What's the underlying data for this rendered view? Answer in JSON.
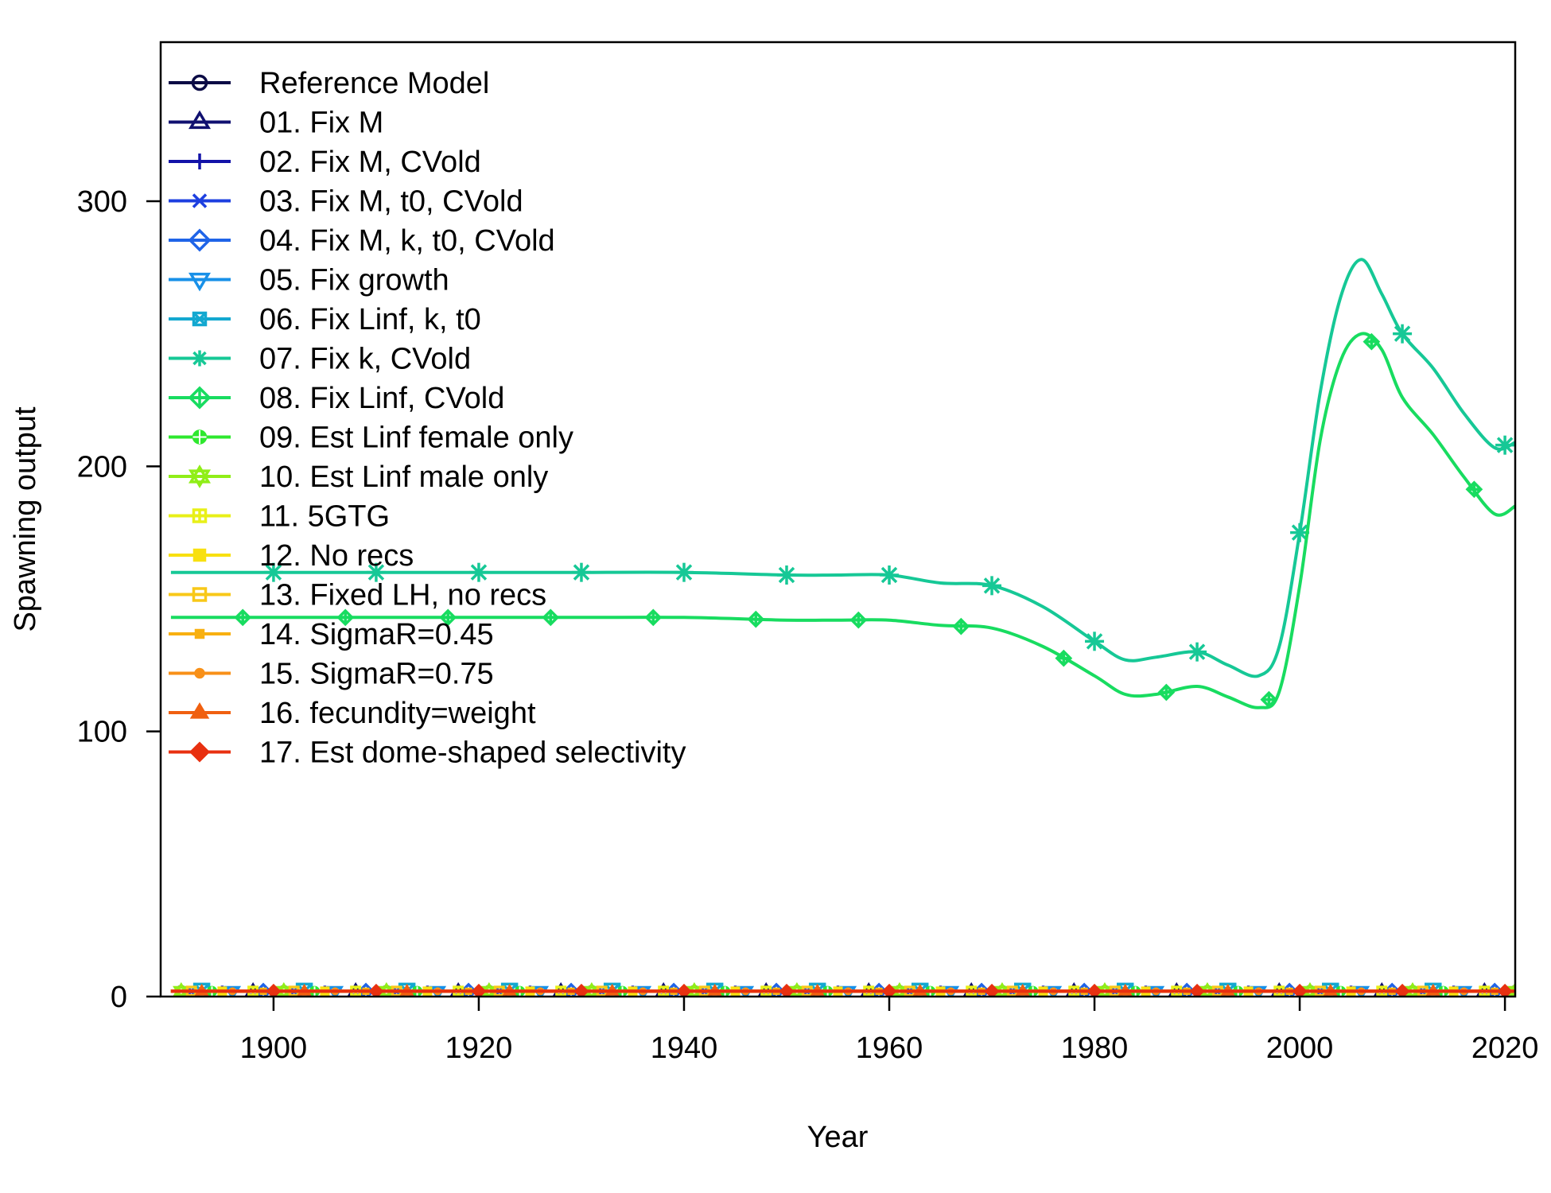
{
  "chart_data": {
    "type": "line",
    "title": "",
    "xlabel": "Year",
    "ylabel": "Spawning output",
    "xlim": [
      1889,
      2021
    ],
    "ylim": [
      0,
      360
    ],
    "xticks": [
      1900,
      1920,
      1940,
      1960,
      1980,
      2000,
      2020
    ],
    "yticks": [
      0,
      100,
      200,
      300
    ],
    "grid": false,
    "legend_position": "top-left",
    "series": [
      {
        "name": "Reference Model",
        "color": "#0b0b45",
        "marker": "circle",
        "x": [
          1890,
          1920,
          1950,
          1980,
          2000,
          2021
        ],
        "y": [
          2,
          2,
          2,
          2,
          2,
          2
        ]
      },
      {
        "name": "01. Fix M",
        "color": "#101070",
        "marker": "triangle",
        "x": [
          1890,
          1920,
          1950,
          1980,
          2000,
          2021
        ],
        "y": [
          2,
          2,
          2,
          2,
          2,
          2
        ]
      },
      {
        "name": "02. Fix M, CVold",
        "color": "#1212a8",
        "marker": "plus",
        "x": [
          1890,
          1920,
          1950,
          1980,
          2000,
          2021
        ],
        "y": [
          2,
          2,
          2,
          2,
          2,
          2
        ]
      },
      {
        "name": "03. Fix M, t0, CVold",
        "color": "#1d3fe0",
        "marker": "x",
        "x": [
          1890,
          1920,
          1950,
          1980,
          2000,
          2021
        ],
        "y": [
          2,
          2,
          2,
          2,
          2,
          2
        ]
      },
      {
        "name": "04. Fix M, k, t0, CVold",
        "color": "#1f64e8",
        "marker": "diamond",
        "x": [
          1890,
          1920,
          1950,
          1980,
          2000,
          2021
        ],
        "y": [
          2,
          2,
          2,
          2,
          2,
          2
        ]
      },
      {
        "name": "05. Fix growth",
        "color": "#1890e8",
        "marker": "triangle-down",
        "x": [
          1890,
          1920,
          1950,
          1980,
          2000,
          2021
        ],
        "y": [
          2,
          2,
          2,
          2,
          2,
          2
        ]
      },
      {
        "name": "06. Fix Linf, k, t0",
        "color": "#13a8d0",
        "marker": "square-x",
        "x": [
          1890,
          1920,
          1950,
          1980,
          2000,
          2021
        ],
        "y": [
          2,
          2,
          2,
          2,
          2,
          2
        ]
      },
      {
        "name": "07. Fix k, CVold",
        "color": "#16c896",
        "marker": "asterisk",
        "x": [
          1890,
          1900,
          1910,
          1920,
          1930,
          1940,
          1950,
          1955,
          1960,
          1965,
          1970,
          1975,
          1980,
          1983,
          1986,
          1990,
          1993,
          1996,
          1998,
          2000,
          2002,
          2004,
          2006,
          2008,
          2010,
          2013,
          2016,
          2019,
          2021
        ],
        "y": [
          160,
          160,
          160,
          160,
          160,
          160,
          159,
          159,
          159,
          156,
          155,
          147,
          134,
          127,
          128,
          130,
          125,
          121,
          132,
          175,
          228,
          264,
          278,
          265,
          250,
          237,
          220,
          207,
          209
        ]
      },
      {
        "name": "08. Fix Linf, CVold",
        "color": "#18dc60",
        "marker": "diamond-plus",
        "x": [
          1890,
          1900,
          1910,
          1920,
          1930,
          1940,
          1950,
          1955,
          1960,
          1965,
          1970,
          1975,
          1980,
          1983,
          1986,
          1990,
          1993,
          1996,
          1998,
          2000,
          2002,
          2004,
          2006,
          2008,
          2010,
          2013,
          2016,
          2019,
          2021
        ],
        "y": [
          143,
          143,
          143,
          143,
          143,
          143,
          142,
          142,
          142,
          140,
          139,
          132,
          121,
          114,
          114,
          117,
          113,
          109,
          115,
          155,
          210,
          240,
          250,
          244,
          226,
          212,
          196,
          182,
          185
        ]
      },
      {
        "name": "09. Est Linf female only",
        "color": "#2ee82e",
        "marker": "circle-plus",
        "x": [
          1890,
          1920,
          1950,
          1980,
          2000,
          2021
        ],
        "y": [
          2,
          2,
          2,
          2,
          2,
          2
        ]
      },
      {
        "name": "10. Est Linf male only",
        "color": "#90ee18",
        "marker": "star-of-david",
        "x": [
          1890,
          1920,
          1950,
          1980,
          2000,
          2021
        ],
        "y": [
          2,
          2,
          2,
          2,
          2,
          2
        ]
      },
      {
        "name": "11. 5GTG",
        "color": "#e8f018",
        "marker": "square-plus",
        "x": [
          1890,
          1920,
          1950,
          1980,
          2000,
          2021
        ],
        "y": [
          2,
          2,
          2,
          2,
          2,
          2
        ]
      },
      {
        "name": "12. No recs",
        "color": "#f8e010",
        "marker": "square-filled",
        "x": [
          1890,
          1920,
          1950,
          1980,
          2000,
          2021
        ],
        "y": [
          2,
          2,
          2,
          2,
          2,
          2
        ]
      },
      {
        "name": "13. Fixed LH, no recs",
        "color": "#f8c818",
        "marker": "square-open",
        "x": [
          1890,
          1920,
          1950,
          1980,
          2000,
          2021
        ],
        "y": [
          2,
          2,
          2,
          2,
          2,
          2
        ]
      },
      {
        "name": "14. SigmaR=0.45",
        "color": "#f8b010",
        "marker": "square-small",
        "x": [
          1890,
          1920,
          1950,
          1980,
          2000,
          2021
        ],
        "y": [
          2,
          2,
          2,
          2,
          2,
          2
        ]
      },
      {
        "name": "15. SigmaR=0.75",
        "color": "#f89018",
        "marker": "dot",
        "x": [
          1890,
          1920,
          1950,
          1980,
          2000,
          2021
        ],
        "y": [
          2,
          2,
          2,
          2,
          2,
          2
        ]
      },
      {
        "name": "16. fecundity=weight",
        "color": "#f06010",
        "marker": "triangle-filled",
        "x": [
          1890,
          1920,
          1950,
          1980,
          2000,
          2021
        ],
        "y": [
          2,
          2,
          2,
          2,
          2,
          2
        ]
      },
      {
        "name": "17. Est dome-shaped selectivity",
        "color": "#e83010",
        "marker": "diamond-filled",
        "x": [
          1890,
          1920,
          1950,
          1980,
          2000,
          2021
        ],
        "y": [
          2,
          2,
          2,
          2,
          2,
          2
        ]
      }
    ]
  }
}
